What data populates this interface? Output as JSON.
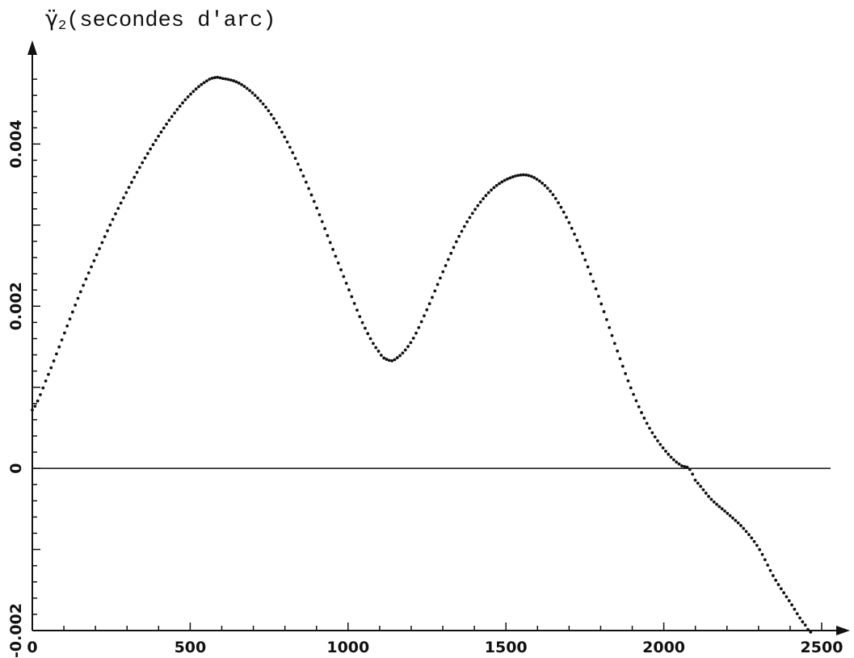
{
  "chart_data": {
    "type": "scatter",
    "title": "",
    "ylabel": {
      "symbol": "γ̈",
      "subscript": "2",
      "text": "(secondes d'arc)"
    },
    "xlabel": "",
    "xlim": [
      0,
      2500
    ],
    "ylim": [
      -0.002,
      0.005
    ],
    "xticks": [
      0,
      500,
      1000,
      1500,
      2000,
      2500
    ],
    "xtick_labels": [
      "0",
      "500",
      "1000",
      "1500",
      "2000",
      "2500"
    ],
    "yticks": [
      -0.002,
      0,
      0.002,
      0.004
    ],
    "ytick_labels": [
      "-0.002",
      "0",
      "0.002",
      "0.004"
    ],
    "reference_line_y": 0,
    "grid": false,
    "marker": "dot",
    "series": [
      {
        "points": [
          [
            0,
            0.00072
          ],
          [
            50,
            0.00115
          ],
          [
            100,
            0.00165
          ],
          [
            150,
            0.00215
          ],
          [
            200,
            0.0026
          ],
          [
            250,
            0.00303
          ],
          [
            300,
            0.00342
          ],
          [
            350,
            0.00378
          ],
          [
            400,
            0.0041
          ],
          [
            450,
            0.00438
          ],
          [
            500,
            0.00461
          ],
          [
            550,
            0.00477
          ],
          [
            580,
            0.00482
          ],
          [
            600,
            0.00481
          ],
          [
            650,
            0.00476
          ],
          [
            700,
            0.00462
          ],
          [
            750,
            0.0044
          ],
          [
            800,
            0.00408
          ],
          [
            850,
            0.00368
          ],
          [
            900,
            0.00322
          ],
          [
            950,
            0.00272
          ],
          [
            1000,
            0.00223
          ],
          [
            1050,
            0.00176
          ],
          [
            1100,
            0.00143
          ],
          [
            1125,
            0.00134
          ],
          [
            1150,
            0.00135
          ],
          [
            1200,
            0.00156
          ],
          [
            1250,
            0.00196
          ],
          [
            1300,
            0.00242
          ],
          [
            1350,
            0.00285
          ],
          [
            1400,
            0.00318
          ],
          [
            1450,
            0.00342
          ],
          [
            1500,
            0.00356
          ],
          [
            1555,
            0.00362
          ],
          [
            1600,
            0.00356
          ],
          [
            1650,
            0.00337
          ],
          [
            1700,
            0.00303
          ],
          [
            1750,
            0.00258
          ],
          [
            1800,
            0.00205
          ],
          [
            1850,
            0.00148
          ],
          [
            1900,
            0.00095
          ],
          [
            1950,
            0.00053
          ],
          [
            2000,
            0.00024
          ],
          [
            2050,
            5e-05
          ],
          [
            2080,
            0.0
          ],
          [
            2100,
            -0.00015
          ],
          [
            2150,
            -0.00038
          ],
          [
            2200,
            -0.00055
          ],
          [
            2250,
            -0.00073
          ],
          [
            2300,
            -0.00098
          ],
          [
            2350,
            -0.00135
          ],
          [
            2400,
            -0.00165
          ],
          [
            2450,
            -0.00194
          ],
          [
            2470,
            -0.00203
          ]
        ]
      }
    ]
  }
}
